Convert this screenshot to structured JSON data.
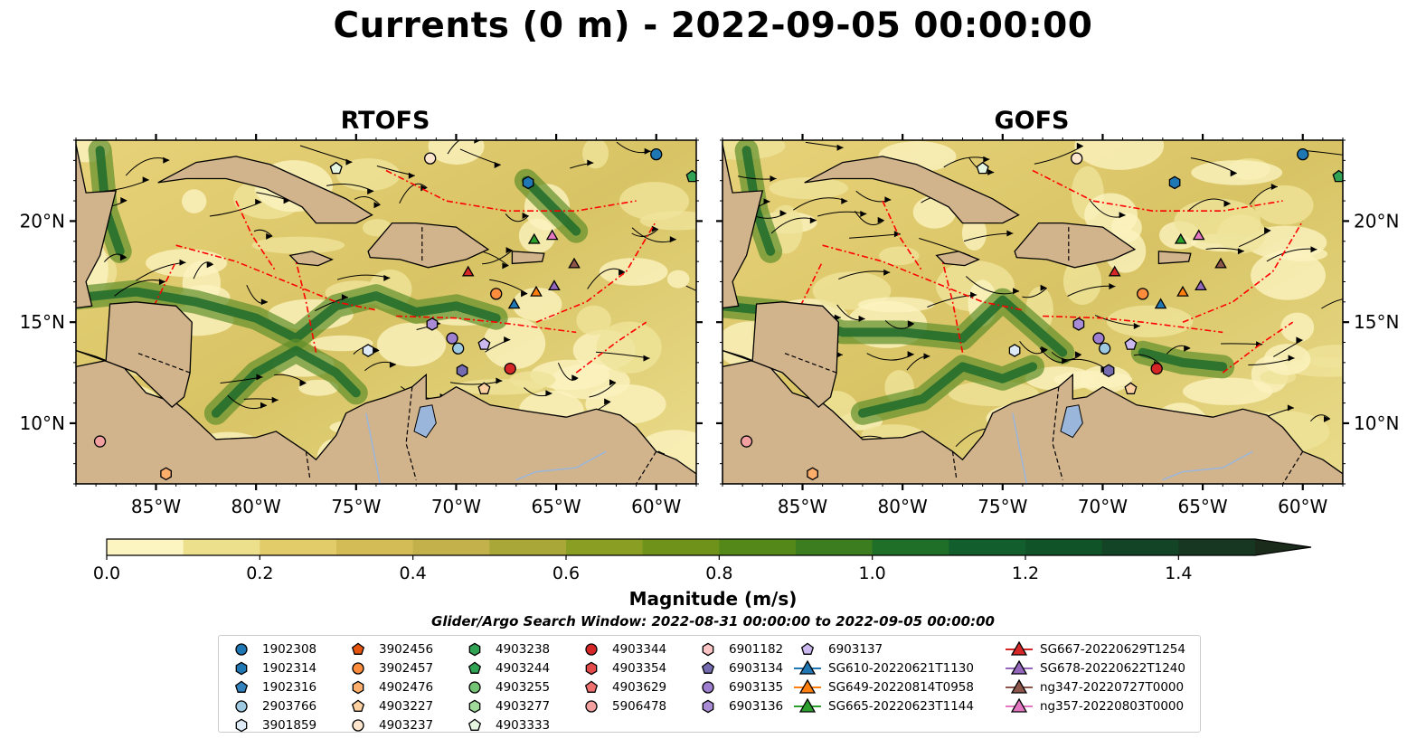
{
  "title": "Currents (0 m) - 2022-09-05 00:00:00",
  "panels": [
    {
      "title": "RTOFS"
    },
    {
      "title": "GOFS"
    }
  ],
  "map": {
    "lat_labels": [
      "20°N",
      "15°N",
      "10°N"
    ],
    "lon_labels": [
      "85°W",
      "80°W",
      "75°W",
      "70°W",
      "65°W",
      "60°W"
    ],
    "lon_extent": [
      -89,
      -58
    ],
    "lat_extent": [
      7,
      24
    ],
    "colors": {
      "land": "#d2b48c",
      "lake": "#9ab6db",
      "eez_line": "#ff0000",
      "border_line": "#000000"
    }
  },
  "colorbar": {
    "title": "Magnitude (m/s)",
    "min": 0.0,
    "max": 1.5,
    "extend": "max",
    "tick_labels": [
      "0.0",
      "0.2",
      "0.4",
      "0.6",
      "0.8",
      "1.0",
      "1.2",
      "1.4"
    ],
    "colors": [
      "#fcf5c2",
      "#ede08d",
      "#e2cc6a",
      "#d3bb55",
      "#c3b24b",
      "#a8a737",
      "#8a9e24",
      "#6f921b",
      "#548818",
      "#3b7d1f",
      "#1f6f28",
      "#135e2d",
      "#115329",
      "#134426",
      "#173722",
      "#1a2a1b"
    ]
  },
  "search_window": "Glider/Argo Search Window: 2022-08-31 00:00:00 to 2022-09-05 00:00:00",
  "legend": {
    "columns": [
      [
        {
          "label": "1902308",
          "marker": "circle",
          "color": "#1f77b4"
        },
        {
          "label": "1902314",
          "marker": "hexagon",
          "color": "#1f77b4"
        },
        {
          "label": "1902316",
          "marker": "pentagon",
          "color": "#3182bd"
        },
        {
          "label": "2903766",
          "marker": "circle",
          "color": "#9ecae1"
        },
        {
          "label": "3901859",
          "marker": "hexagon",
          "color": "#deebf7"
        }
      ],
      [
        {
          "label": "3902456",
          "marker": "pentagon",
          "color": "#e6550d"
        },
        {
          "label": "3902457",
          "marker": "circle",
          "color": "#fd8d3c"
        },
        {
          "label": "4902476",
          "marker": "hexagon",
          "color": "#fdae6b"
        },
        {
          "label": "4903227",
          "marker": "pentagon",
          "color": "#fdd0a2"
        },
        {
          "label": "4903237",
          "marker": "circle",
          "color": "#fee6ce"
        }
      ],
      [
        {
          "label": "4903238",
          "marker": "hexagon",
          "color": "#31a354"
        },
        {
          "label": "4903244",
          "marker": "pentagon",
          "color": "#31a354"
        },
        {
          "label": "4903255",
          "marker": "circle",
          "color": "#74c476"
        },
        {
          "label": "4903277",
          "marker": "hexagon",
          "color": "#a1d99b"
        },
        {
          "label": "4903333",
          "marker": "pentagon",
          "color": "#e5f5e0"
        }
      ],
      [
        {
          "label": "4903344",
          "marker": "circle",
          "color": "#d62728"
        },
        {
          "label": "4903354",
          "marker": "hexagon",
          "color": "#e34a4a"
        },
        {
          "label": "4903629",
          "marker": "pentagon",
          "color": "#f07070"
        },
        {
          "label": "5906478",
          "marker": "circle",
          "color": "#f4a0a0"
        }
      ],
      [
        {
          "label": "6901182",
          "marker": "hexagon",
          "color": "#fcc5c5"
        },
        {
          "label": "6903134",
          "marker": "pentagon",
          "color": "#756bb1"
        },
        {
          "label": "6903135",
          "marker": "circle",
          "color": "#9e7fcf"
        },
        {
          "label": "6903136",
          "marker": "hexagon",
          "color": "#a98bd6"
        }
      ],
      [
        {
          "label": "6903137",
          "marker": "pentagon",
          "color": "#cbb8ee"
        },
        {
          "label": "SG610-20220621T1130",
          "marker": "triangle-line",
          "color": "#1f77b4"
        },
        {
          "label": "SG649-20220814T0958",
          "marker": "triangle-line",
          "color": "#ff7f0e"
        },
        {
          "label": "SG665-20220623T1144",
          "marker": "triangle-line",
          "color": "#2ca02c"
        }
      ],
      [
        {
          "label": "SG667-20220629T1254",
          "marker": "triangle-line",
          "color": "#d62728"
        },
        {
          "label": "SG678-20220622T1240",
          "marker": "triangle-line",
          "color": "#9467bd"
        },
        {
          "label": "ng347-20220727T0000",
          "marker": "triangle-line",
          "color": "#8c564b"
        },
        {
          "label": "ng357-20220803T0000",
          "marker": "triangle-line",
          "color": "#e377c2"
        }
      ]
    ]
  },
  "markers_on_map": [
    {
      "id": "1902308",
      "lon": -60.0,
      "lat": 23.3,
      "shape": "circle",
      "color": "#1f77b4"
    },
    {
      "id": "1902314",
      "lon": -66.4,
      "lat": 21.9,
      "shape": "hexagon",
      "color": "#1f77b4"
    },
    {
      "id": "2903766",
      "lon": -69.9,
      "lat": 13.7,
      "shape": "circle",
      "color": "#9ecae1"
    },
    {
      "id": "3901859",
      "lon": -74.4,
      "lat": 13.6,
      "shape": "hexagon",
      "color": "#deebf7"
    },
    {
      "id": "3902457",
      "lon": -68.0,
      "lat": 16.4,
      "shape": "circle",
      "color": "#fd8d3c"
    },
    {
      "id": "4902476",
      "lon": -84.5,
      "lat": 7.5,
      "shape": "hexagon",
      "color": "#fdae6b"
    },
    {
      "id": "4903227",
      "lon": -68.6,
      "lat": 11.7,
      "shape": "pentagon",
      "color": "#fdd0a2"
    },
    {
      "id": "4903237",
      "lon": -71.3,
      "lat": 23.1,
      "shape": "circle",
      "color": "#fee6ce"
    },
    {
      "id": "4903244",
      "lon": -58.2,
      "lat": 22.2,
      "shape": "pentagon",
      "color": "#31a354"
    },
    {
      "id": "4903333",
      "lon": -76.0,
      "lat": 22.6,
      "shape": "pentagon",
      "color": "#e5f5e0"
    },
    {
      "id": "4903344",
      "lon": -67.3,
      "lat": 12.7,
      "shape": "circle",
      "color": "#d62728"
    },
    {
      "id": "5906478",
      "lon": -87.8,
      "lat": 9.1,
      "shape": "circle",
      "color": "#f4a0a0"
    },
    {
      "id": "6903134",
      "lon": -69.7,
      "lat": 12.6,
      "shape": "hexagon",
      "color": "#756bb1"
    },
    {
      "id": "6903135",
      "lon": -70.2,
      "lat": 14.2,
      "shape": "circle",
      "color": "#9e7fcf"
    },
    {
      "id": "6903136",
      "lon": -71.2,
      "lat": 14.9,
      "shape": "hexagon",
      "color": "#a98bd6"
    },
    {
      "id": "6903137",
      "lon": -68.6,
      "lat": 13.9,
      "shape": "pentagon",
      "color": "#cbb8ee"
    },
    {
      "id": "SG610-20220621T1130",
      "lon": -67.1,
      "lat": 15.9,
      "shape": "triangle",
      "color": "#1f77b4"
    },
    {
      "id": "SG649-20220814T0958",
      "lon": -66.0,
      "lat": 16.5,
      "shape": "triangle",
      "color": "#ff7f0e"
    },
    {
      "id": "SG665-20220623T1144",
      "lon": -66.1,
      "lat": 19.1,
      "shape": "triangle",
      "color": "#2ca02c"
    },
    {
      "id": "SG667-20220629T1254",
      "lon": -69.4,
      "lat": 17.5,
      "shape": "triangle",
      "color": "#d62728"
    },
    {
      "id": "SG678-20220622T1240",
      "lon": -65.1,
      "lat": 16.8,
      "shape": "triangle",
      "color": "#9467bd"
    },
    {
      "id": "ng347-20220727T0000",
      "lon": -64.1,
      "lat": 17.9,
      "shape": "triangle",
      "color": "#8c564b"
    },
    {
      "id": "ng357-20220803T0000",
      "lon": -65.2,
      "lat": 19.3,
      "shape": "triangle",
      "color": "#e377c2"
    }
  ]
}
